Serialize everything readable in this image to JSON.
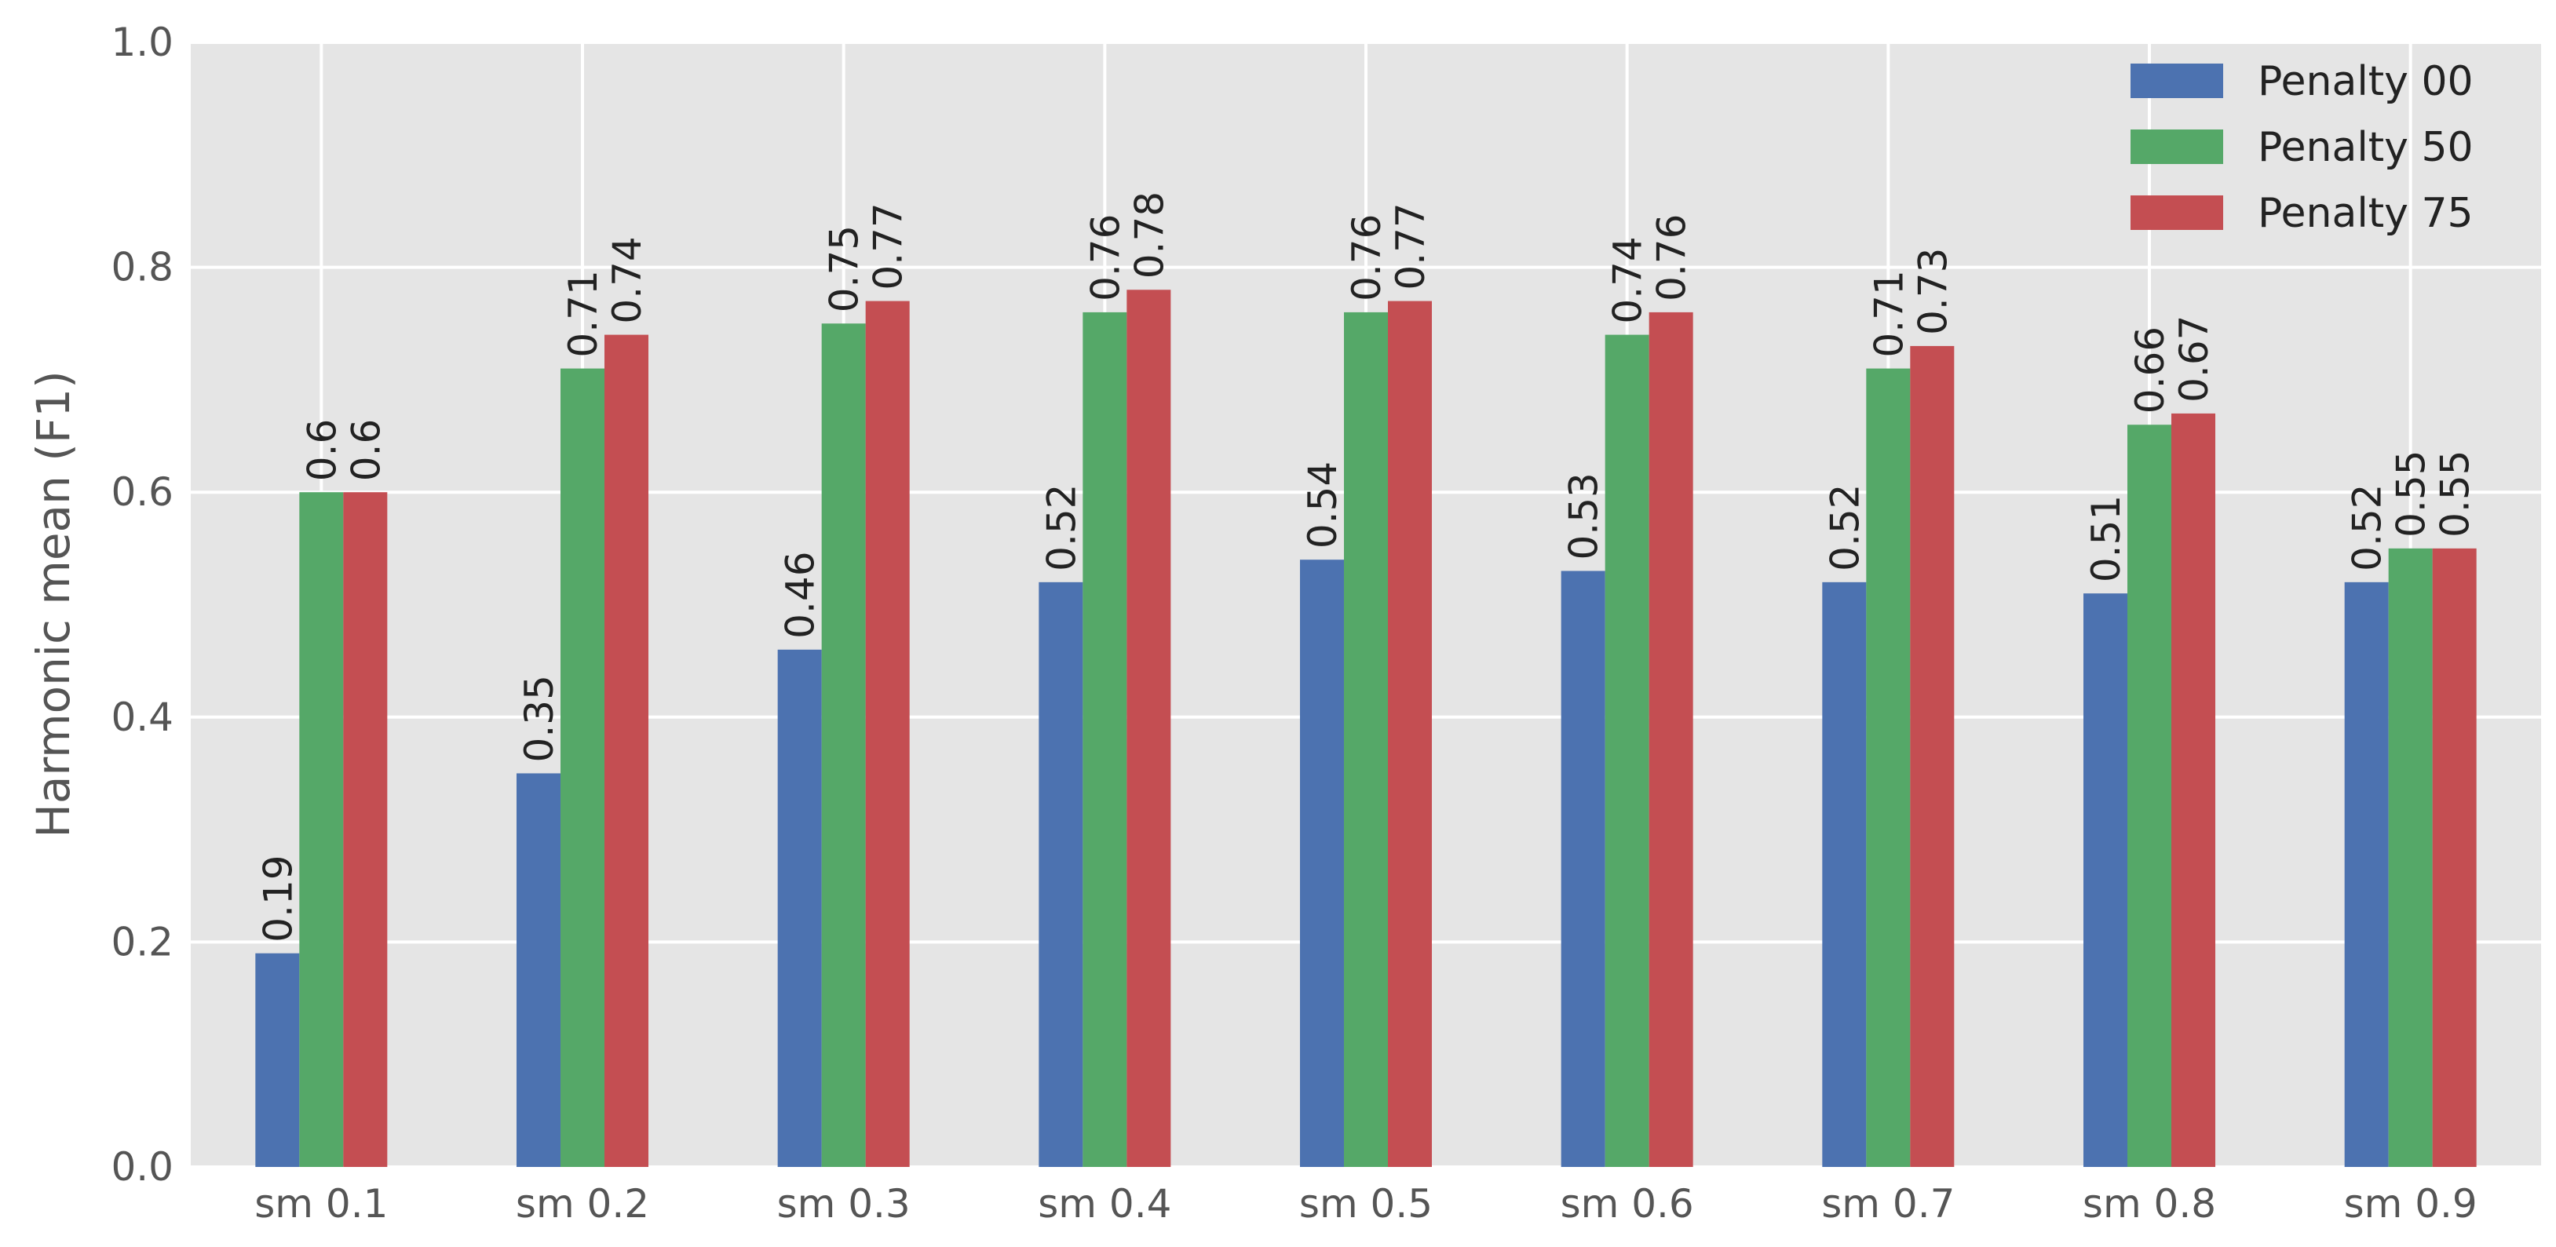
{
  "chart_data": {
    "type": "bar",
    "title": "",
    "xlabel": "",
    "ylabel": "Harmonic mean (F1)",
    "ylim": [
      0,
      1.0
    ],
    "yticks": [
      "0.0",
      "0.2",
      "0.4",
      "0.6",
      "0.8",
      "1.0"
    ],
    "grid": true,
    "legend_position": "top-right",
    "categories": [
      "sm 0.1",
      "sm 0.2",
      "sm 0.3",
      "sm 0.4",
      "sm 0.5",
      "sm 0.6",
      "sm 0.7",
      "sm 0.8",
      "sm 0.9"
    ],
    "series": [
      {
        "name": "Penalty 00",
        "color": "#4c72b0",
        "values": [
          0.19,
          0.35,
          0.46,
          0.52,
          0.54,
          0.53,
          0.52,
          0.51,
          0.52
        ],
        "labels": [
          "0.19",
          "0.35",
          "0.46",
          "0.52",
          "0.54",
          "0.53",
          "0.52",
          "0.51",
          "0.52"
        ]
      },
      {
        "name": "Penalty 50",
        "color": "#55a868",
        "values": [
          0.6,
          0.71,
          0.75,
          0.76,
          0.76,
          0.74,
          0.71,
          0.66,
          0.55
        ],
        "labels": [
          "0.6",
          "0.71",
          "0.75",
          "0.76",
          "0.76",
          "0.74",
          "0.71",
          "0.66",
          "0.55"
        ]
      },
      {
        "name": "Penalty 75",
        "color": "#c44e52",
        "values": [
          0.6,
          0.74,
          0.77,
          0.78,
          0.77,
          0.76,
          0.73,
          0.67,
          0.55
        ],
        "labels": [
          "0.6",
          "0.74",
          "0.77",
          "0.78",
          "0.77",
          "0.76",
          "0.73",
          "0.67",
          "0.55"
        ]
      }
    ]
  }
}
